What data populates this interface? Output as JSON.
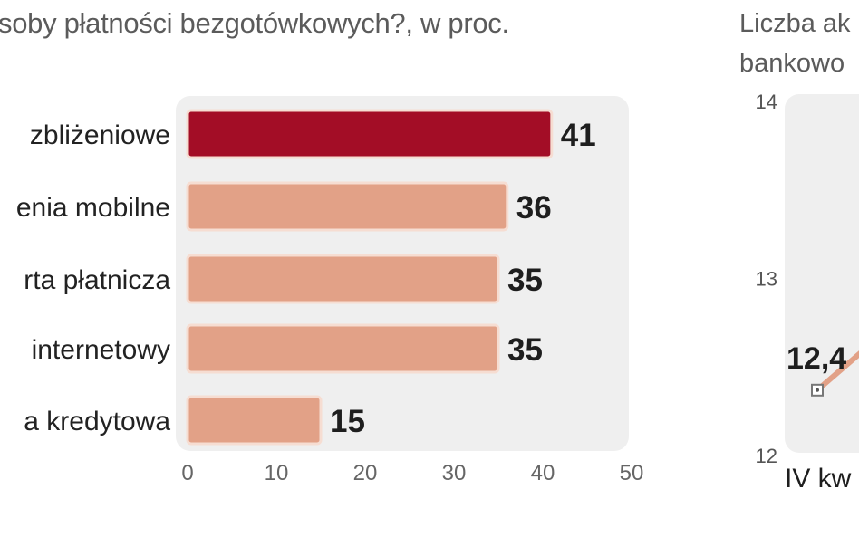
{
  "left_chart": {
    "subtitle_fragment": "soby płatności bezgotówkowych?, w proc.",
    "chart_data": {
      "type": "bar",
      "orientation": "horizontal",
      "categories": [
        "zbliżeniowe",
        "enia mobilne",
        "rta płatnicza",
        "internetowy",
        "a kredytowa"
      ],
      "values": [
        41,
        36,
        35,
        35,
        15
      ],
      "value_labels": [
        "41",
        "36",
        "35",
        "35",
        "15"
      ],
      "xlim": [
        0,
        50
      ],
      "x_ticks": [
        "0",
        "10",
        "20",
        "30",
        "40",
        "50"
      ],
      "highlight_color": "#a30d26",
      "bar_color": "#e2a187",
      "grid": false
    }
  },
  "right_chart": {
    "title_lines": [
      "Liczba ak",
      "bankowo"
    ],
    "chart_data": {
      "type": "line",
      "y_ticks": [
        "14",
        "13",
        "12"
      ],
      "ylim": [
        12,
        14
      ],
      "x_categories": [
        "IV kw"
      ],
      "points": [
        {
          "x": "IV kw",
          "y": 12.4,
          "label": "12,4"
        }
      ],
      "line_color": "#e2a187"
    }
  }
}
